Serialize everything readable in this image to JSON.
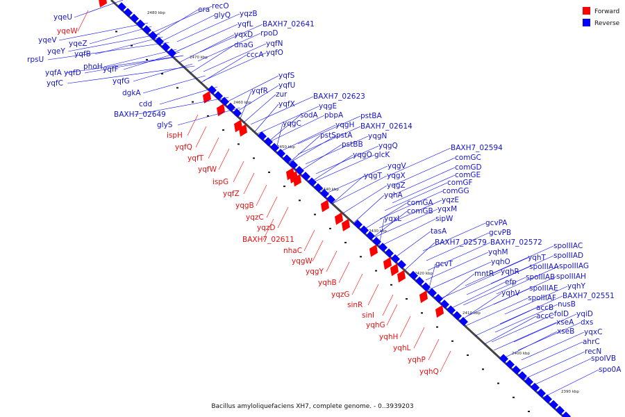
{
  "title": "Bacillus amyloliquefaciens XH7, complete genome. - 0..3939203",
  "legend": {
    "forward": {
      "label": "Forward",
      "color": "#ff0000"
    },
    "reverse": {
      "label": "Reverse",
      "color": "#0000ff"
    }
  },
  "colors": {
    "forward": "#ff0000",
    "reverse": "#0000ff",
    "axis": "#555555"
  },
  "scale_ticks": [
    "2480 kbp",
    "2470 kbp",
    "2460 kbp",
    "2450 kbp",
    "2440 kbp",
    "2430 kbp",
    "2420 kbp",
    "2410 kbp",
    "2400 kbp",
    "2390 kbp"
  ],
  "reverse_labels": [
    "era",
    "recO",
    "glyQ",
    "yqzB",
    "yqfL",
    "BAXH7_02641",
    "yqxD",
    "rpoD",
    "dnaG",
    "yqfN",
    "cccA",
    "yqfO",
    "yqfS",
    "yqfU",
    "yqfR",
    "zur",
    "yqfX",
    "BAXH7_02623",
    "yqgE",
    "sodA",
    "pbpA",
    "yqgC",
    "pstBA",
    "yqgH",
    "BAXH7_02614",
    "pstS",
    "pstA",
    "yqgN",
    "pstBB",
    "yqgQ",
    "yqgO",
    "glcK",
    "yqgV",
    "yqgX",
    "yqgT",
    "yqgZ",
    "yqhA",
    "BAXH7_02594",
    "comGC",
    "comGD",
    "comGE",
    "comGF",
    "comGG",
    "yqzE",
    "comGA",
    "yqxM",
    "comGB",
    "sipW",
    "yqxL",
    "tasA",
    "BAXH7_02579",
    "gcvPA",
    "gcvPB",
    "BAXH7_02572",
    "yqhM",
    "yqhO",
    "yqhT",
    "gcvT",
    "mntR",
    "yqhR",
    "efp",
    "yqhV",
    "spoIIIAC",
    "spoIIIAD",
    "spoIIIAA",
    "spoIIIAG",
    "spoIIIAB",
    "spoIIIAH",
    "spoIIIAE",
    "spoIIIAF",
    "yqhY",
    "BAXH7_02551",
    "accB",
    "nusB",
    "accC",
    "folD",
    "yqiD",
    "xseA",
    "dxs",
    "xseB",
    "yqxC",
    "ahrC",
    "recN",
    "spoIVB",
    "spo0A",
    "yqeU",
    "yqeV",
    "yqeZ",
    "yqeY",
    "rpsU",
    "yqfB",
    "phoH",
    "yqfA",
    "yqfD",
    "yqfF",
    "yqfC",
    "yqfG",
    "dgkA",
    "cdd",
    "BAXH7_02649",
    "glyS"
  ],
  "forward_labels": [
    "yqeW",
    "ispH",
    "yqfQ",
    "yqfT",
    "yqfW",
    "ispG",
    "yqfZ",
    "yqgB",
    "yqzC",
    "yqzD",
    "BAXH7_02611",
    "nhaC",
    "yqgW",
    "yqgY",
    "yqhB",
    "yqzG",
    "sinR",
    "sinI",
    "yqhG",
    "yqhH",
    "yqhL",
    "yqhP",
    "yqhQ"
  ]
}
